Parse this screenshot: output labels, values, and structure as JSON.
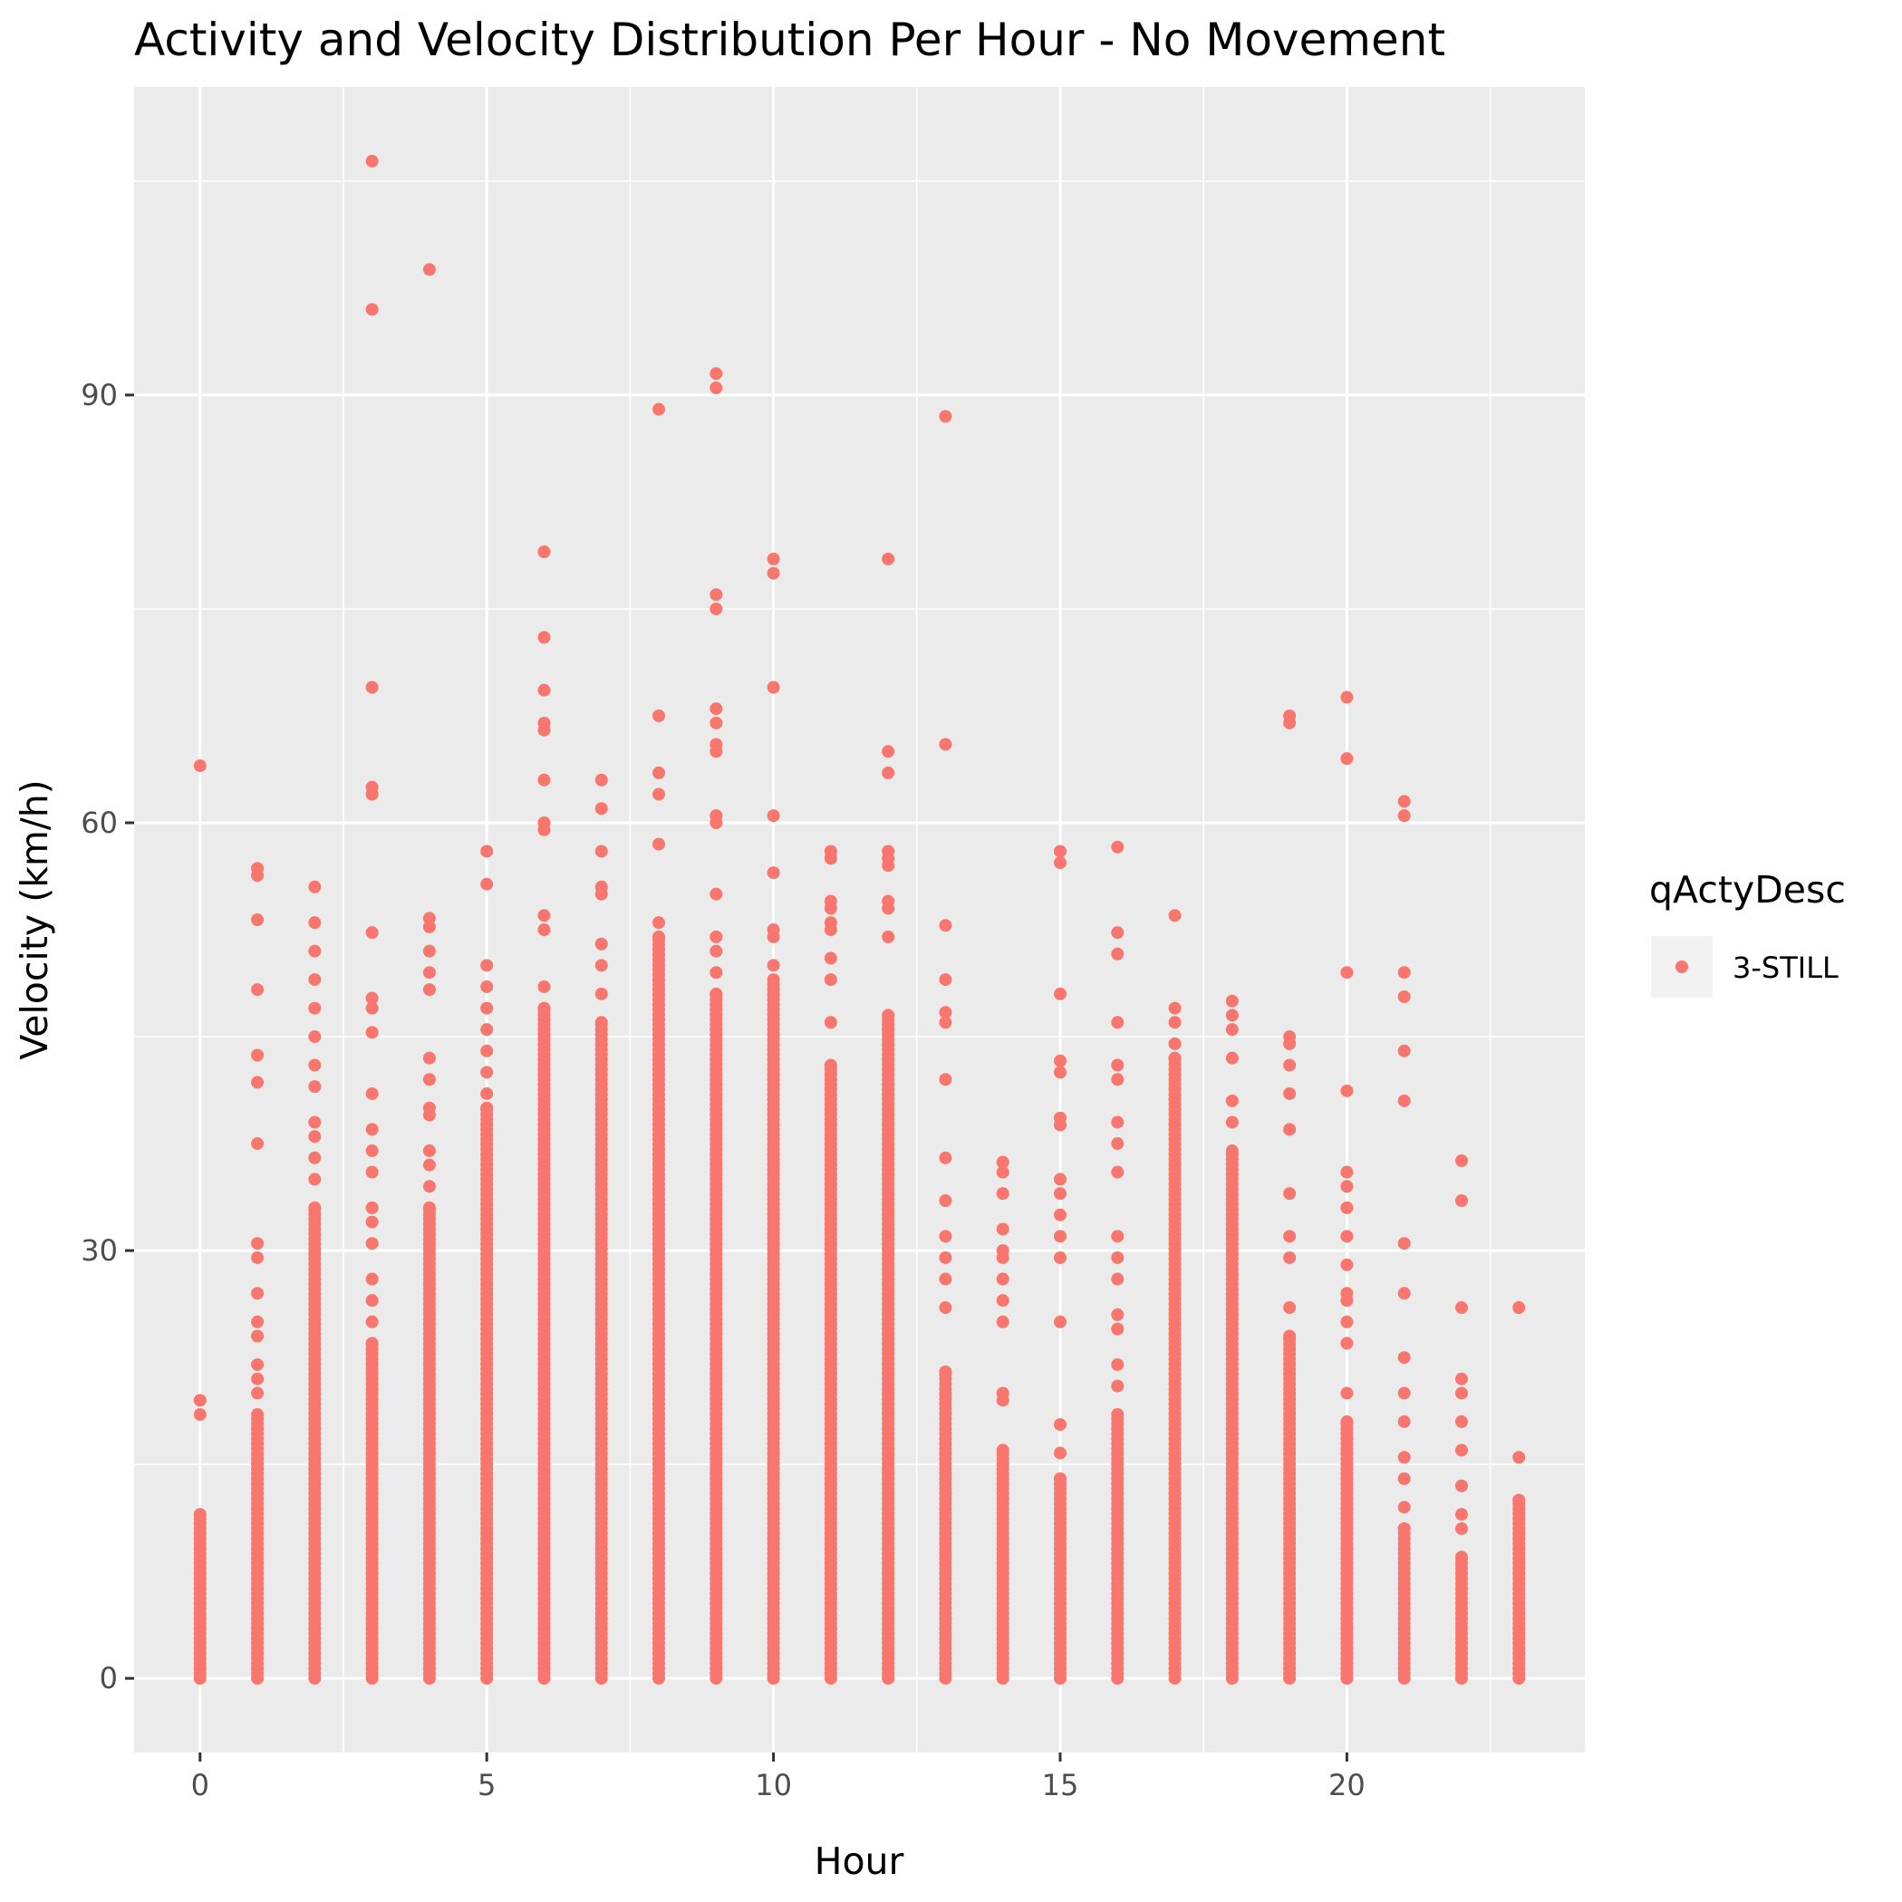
{
  "chart_data": {
    "type": "scatter",
    "title": "Activity and Velocity Distribution Per Hour - No Movement",
    "xlabel": "Hour",
    "ylabel": "Velocity (km/h)",
    "xlim": [
      -1.15,
      24.15
    ],
    "ylim": [
      -5.2,
      111.6
    ],
    "x_ticks": [
      0,
      5,
      10,
      15,
      20
    ],
    "y_ticks": [
      0,
      30,
      60,
      90
    ],
    "x_tick_labels": [
      "0",
      "5",
      "10",
      "15",
      "20"
    ],
    "y_tick_labels": [
      "0",
      "30",
      "60",
      "90"
    ],
    "grid": true,
    "legend": {
      "title": "qActyDesc",
      "placement": "right",
      "entries": [
        "3-STILL"
      ]
    },
    "series": [
      {
        "name": "3-STILL",
        "color": "#F8766D",
        "points_by_hour": [
          {
            "hour": 0,
            "dense_max": 11.5,
            "outliers": [
              18.5,
              19.5,
              64
            ]
          },
          {
            "hour": 1,
            "dense_max": 18.5,
            "outliers": [
              20,
              21,
              22,
              24,
              25,
              27,
              29.5,
              30.5,
              37.5,
              41.8,
              43.7,
              48.3,
              53.2,
              56.3,
              56.8
            ]
          },
          {
            "hour": 2,
            "dense_max": 33,
            "outliers": [
              35,
              36.5,
              38,
              39,
              41.5,
              43,
              45,
              47,
              49,
              51,
              53,
              55.5
            ]
          },
          {
            "hour": 3,
            "dense_max": 23.5,
            "outliers": [
              25,
              26.5,
              28,
              30.5,
              32,
              33,
              35.5,
              37,
              38.5,
              41,
              45.3,
              47,
              47.7,
              52.3,
              62,
              62.5,
              69.5,
              96,
              106.4
            ]
          },
          {
            "hour": 4,
            "dense_max": 33,
            "outliers": [
              34.5,
              36,
              37,
              39.5,
              40,
              42,
              43.5,
              48.3,
              49.5,
              51,
              52.7,
              53.3,
              98.8
            ]
          },
          {
            "hour": 5,
            "dense_max": 40,
            "outliers": [
              41,
              42.5,
              44,
              45.5,
              47,
              48.5,
              50,
              55.7,
              58
            ]
          },
          {
            "hour": 6,
            "dense_max": 47,
            "outliers": [
              48.5,
              52.5,
              53.5,
              59.5,
              60,
              63,
              66.5,
              67,
              69.3,
              73,
              79
            ]
          },
          {
            "hour": 7,
            "dense_max": 46,
            "outliers": [
              48,
              50,
              51.5,
              55,
              55.5,
              58,
              61,
              63
            ]
          },
          {
            "hour": 8,
            "dense_max": 52,
            "outliers": [
              53,
              58.5,
              62,
              63.5,
              67.5,
              89
            ]
          },
          {
            "hour": 9,
            "dense_max": 48,
            "outliers": [
              49.5,
              51,
              52,
              55,
              60,
              60.5,
              65,
              65.5,
              67,
              68,
              75,
              76,
              90.5,
              91.5
            ]
          },
          {
            "hour": 10,
            "dense_max": 49,
            "outliers": [
              50,
              52,
              52.5,
              56.5,
              60.5,
              69.5,
              77.5,
              78.5
            ]
          },
          {
            "hour": 11,
            "dense_max": 43,
            "outliers": [
              46,
              49,
              50.5,
              52.5,
              53,
              54,
              54.5,
              57.5,
              58
            ]
          },
          {
            "hour": 12,
            "dense_max": 46.5,
            "outliers": [
              52,
              54,
              54.5,
              57,
              57.5,
              58,
              63.5,
              65,
              78.5
            ]
          },
          {
            "hour": 13,
            "dense_max": 21.5,
            "outliers": [
              26,
              28,
              29.5,
              31,
              33.5,
              36.5,
              42,
              46,
              46.7,
              49,
              52.8,
              65.5,
              88.5
            ]
          },
          {
            "hour": 14,
            "dense_max": 16,
            "outliers": [
              19.5,
              20,
              25,
              26.5,
              28,
              29.5,
              30,
              31.5,
              34,
              35.5,
              36.2
            ]
          },
          {
            "hour": 15,
            "dense_max": 14,
            "outliers": [
              15.8,
              17.8,
              25,
              29.5,
              31,
              32.5,
              34,
              35,
              38.8,
              39.3,
              42.5,
              43.3,
              48,
              57.2,
              58
            ]
          },
          {
            "hour": 16,
            "dense_max": 18.5,
            "outliers": [
              20.5,
              22,
              24.5,
              25.5,
              28,
              29.5,
              31,
              35.5,
              37.5,
              39,
              42,
              43,
              46,
              50.8,
              52.3,
              58.3
            ]
          },
          {
            "hour": 17,
            "dense_max": 43.5,
            "outliers": [
              44.5,
              46,
              47,
              53.5
            ]
          },
          {
            "hour": 18,
            "dense_max": 37,
            "outliers": [
              39,
              40.5,
              43.5,
              45.5,
              46.5,
              47.5
            ]
          },
          {
            "hour": 19,
            "dense_max": 24,
            "outliers": [
              26,
              29.5,
              31,
              34,
              38.5,
              41,
              43,
              44.5,
              45,
              67,
              67.5
            ]
          },
          {
            "hour": 20,
            "dense_max": 18,
            "outliers": [
              20,
              23.5,
              25,
              26.5,
              27,
              29,
              31,
              33,
              34.5,
              35.5,
              41.2,
              49.5,
              64.5,
              68.8
            ]
          },
          {
            "hour": 21,
            "dense_max": 10.5,
            "outliers": [
              12,
              14,
              15.5,
              18,
              20,
              22.5,
              27,
              30.5,
              40.5,
              44,
              47.8,
              49.5,
              60.5,
              61.5
            ]
          },
          {
            "hour": 22,
            "dense_max": 8.5,
            "outliers": [
              10.5,
              11.5,
              13.5,
              16,
              18,
              20,
              21,
              26,
              33.5,
              36.3
            ]
          },
          {
            "hour": 23,
            "dense_max": 12.5,
            "outliers": [
              15.5,
              26
            ]
          }
        ]
      }
    ]
  }
}
